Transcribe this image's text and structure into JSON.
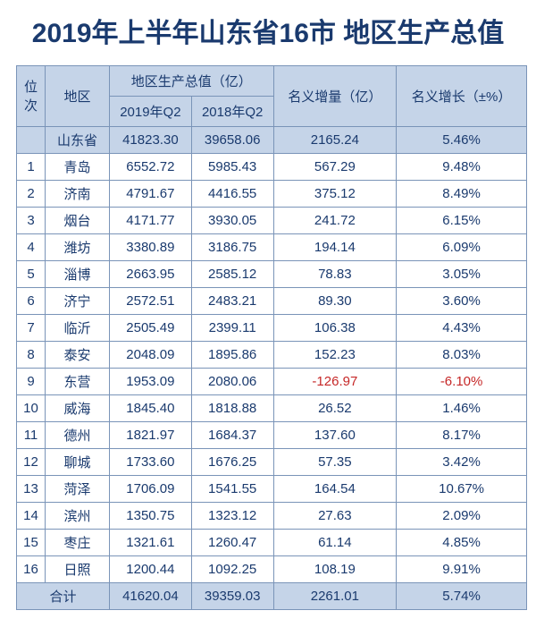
{
  "title": "2019年上半年山东省16市\n地区生产总值",
  "headers": {
    "rank": "位次",
    "region": "地区",
    "gdp_group": "地区生产总值（亿）",
    "gdp_2019q2": "2019年Q2",
    "gdp_2018q2": "2018年Q2",
    "nominal_increase": "名义增量（亿）",
    "nominal_growth": "名义增长（±%）"
  },
  "province_row": {
    "region": "山东省",
    "gdp_2019q2": "41823.30",
    "gdp_2018q2": "39658.06",
    "increase": "2165.24",
    "growth": "5.46%"
  },
  "rows": [
    {
      "rank": "1",
      "region": "青岛",
      "gdp_2019q2": "6552.72",
      "gdp_2018q2": "5985.43",
      "increase": "567.29",
      "growth": "9.48%"
    },
    {
      "rank": "2",
      "region": "济南",
      "gdp_2019q2": "4791.67",
      "gdp_2018q2": "4416.55",
      "increase": "375.12",
      "growth": "8.49%"
    },
    {
      "rank": "3",
      "region": "烟台",
      "gdp_2019q2": "4171.77",
      "gdp_2018q2": "3930.05",
      "increase": "241.72",
      "growth": "6.15%"
    },
    {
      "rank": "4",
      "region": "潍坊",
      "gdp_2019q2": "3380.89",
      "gdp_2018q2": "3186.75",
      "increase": "194.14",
      "growth": "6.09%"
    },
    {
      "rank": "5",
      "region": "淄博",
      "gdp_2019q2": "2663.95",
      "gdp_2018q2": "2585.12",
      "increase": "78.83",
      "growth": "3.05%"
    },
    {
      "rank": "6",
      "region": "济宁",
      "gdp_2019q2": "2572.51",
      "gdp_2018q2": "2483.21",
      "increase": "89.30",
      "growth": "3.60%"
    },
    {
      "rank": "7",
      "region": "临沂",
      "gdp_2019q2": "2505.49",
      "gdp_2018q2": "2399.11",
      "increase": "106.38",
      "growth": "4.43%"
    },
    {
      "rank": "8",
      "region": "泰安",
      "gdp_2019q2": "2048.09",
      "gdp_2018q2": "1895.86",
      "increase": "152.23",
      "growth": "8.03%"
    },
    {
      "rank": "9",
      "region": "东营",
      "gdp_2019q2": "1953.09",
      "gdp_2018q2": "2080.06",
      "increase": "-126.97",
      "growth": "-6.10%",
      "neg": true
    },
    {
      "rank": "10",
      "region": "威海",
      "gdp_2019q2": "1845.40",
      "gdp_2018q2": "1818.88",
      "increase": "26.52",
      "growth": "1.46%"
    },
    {
      "rank": "11",
      "region": "德州",
      "gdp_2019q2": "1821.97",
      "gdp_2018q2": "1684.37",
      "increase": "137.60",
      "growth": "8.17%"
    },
    {
      "rank": "12",
      "region": "聊城",
      "gdp_2019q2": "1733.60",
      "gdp_2018q2": "1676.25",
      "increase": "57.35",
      "growth": "3.42%"
    },
    {
      "rank": "13",
      "region": "菏泽",
      "gdp_2019q2": "1706.09",
      "gdp_2018q2": "1541.55",
      "increase": "164.54",
      "growth": "10.67%",
      "highlight": true
    },
    {
      "rank": "14",
      "region": "滨州",
      "gdp_2019q2": "1350.75",
      "gdp_2018q2": "1323.12",
      "increase": "27.63",
      "growth": "2.09%"
    },
    {
      "rank": "15",
      "region": "枣庄",
      "gdp_2019q2": "1321.61",
      "gdp_2018q2": "1260.47",
      "increase": "61.14",
      "growth": "4.85%"
    },
    {
      "rank": "16",
      "region": "日照",
      "gdp_2019q2": "1200.44",
      "gdp_2018q2": "1092.25",
      "increase": "108.19",
      "growth": "9.91%"
    }
  ],
  "total_row": {
    "label": "合计",
    "gdp_2019q2": "41620.04",
    "gdp_2018q2": "39359.03",
    "increase": "2261.01",
    "growth": "5.74%"
  },
  "style": {
    "header_bg": "#c5d4e8",
    "body_bg": "#ffffff",
    "text_color": "#1a3a6e",
    "negative_color": "#c62828",
    "border_color": "#7a94b8",
    "highlight_border": "#8b1a1a",
    "title_fontsize": 30,
    "cell_fontsize": 15
  }
}
